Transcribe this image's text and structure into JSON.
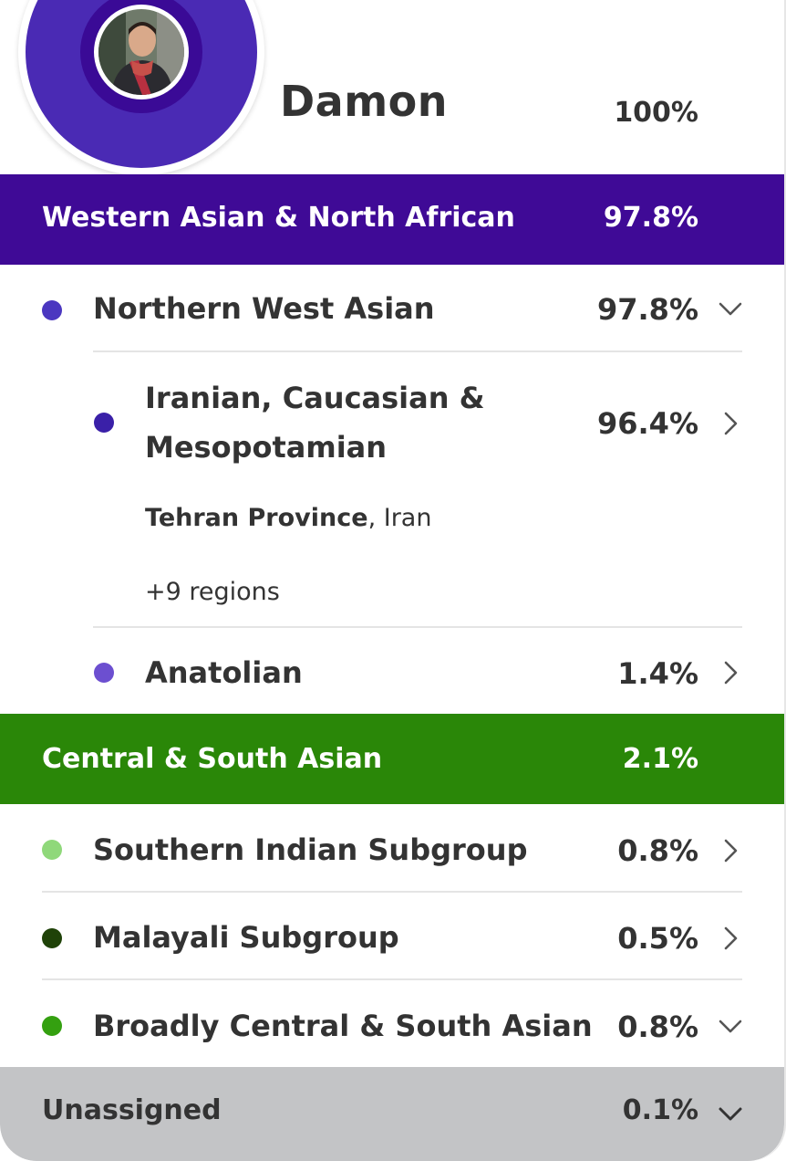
{
  "header": {
    "name": "Damon",
    "total_percent": "100%"
  },
  "colors": {
    "western_asian_band": "#3f0a96",
    "central_south_band": "#2a8708",
    "unassigned_band": "#c3c4c6",
    "donut_main": "#4a2ab4",
    "northern_west_asian_dot": "#4b37c0",
    "iranian_dot": "#3a20a8",
    "anatolian_dot": "#6c4fd0",
    "southern_indian_dot": "#8fd87a",
    "malayali_dot": "#1f4208",
    "broadly_csa_dot": "#34a010"
  },
  "groups": {
    "western_asian": {
      "label": "Western Asian & North African",
      "percent": "97.8%"
    },
    "northern_west_asian": {
      "label": "Northern West Asian",
      "percent": "97.8%",
      "chevron": "chevron-down-icon"
    },
    "iranian": {
      "label_line1": "Iranian, Caucasian &",
      "label_line2": "Mesopotamian",
      "percent": "96.4%",
      "chevron": "chevron-right-icon",
      "region_bold": "Tehran Province",
      "region_rest": ", Iran",
      "more_regions": "+9 regions"
    },
    "anatolian": {
      "label": "Anatolian",
      "percent": "1.4%",
      "chevron": "chevron-right-icon"
    },
    "central_south": {
      "label": "Central & South Asian",
      "percent": "2.1%"
    },
    "southern_indian": {
      "label": "Southern Indian Subgroup",
      "percent": "0.8%",
      "chevron": "chevron-right-icon"
    },
    "malayali": {
      "label": "Malayali Subgroup",
      "percent": "0.5%",
      "chevron": "chevron-right-icon"
    },
    "broadly_csa": {
      "label": "Broadly Central & South Asian",
      "percent": "0.8%",
      "chevron": "chevron-down-icon"
    },
    "unassigned": {
      "label": "Unassigned",
      "percent": "0.1%",
      "chevron": "chevron-down-icon"
    }
  }
}
